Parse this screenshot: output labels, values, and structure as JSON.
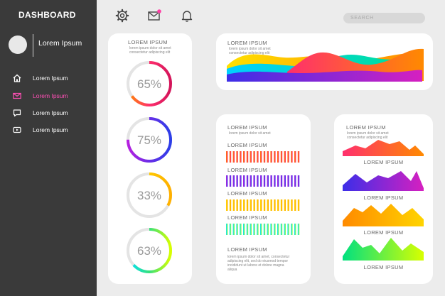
{
  "sidebar": {
    "title": "DASHBOARD",
    "user_name": "Lorem Ipsum",
    "items": [
      {
        "label": "Lorem Ipsum",
        "icon": "home-icon",
        "active": false
      },
      {
        "label": "Lorem Ipsum",
        "icon": "mail-icon",
        "active": true
      },
      {
        "label": "Lorem Ipsum",
        "icon": "chat-icon",
        "active": false
      },
      {
        "label": "Lorem Ipsum",
        "icon": "video-icon",
        "active": false
      }
    ]
  },
  "topbar": {
    "icons": [
      "gear-icon",
      "mail-icon",
      "bell-icon"
    ],
    "notification_color": "#ff3ea5",
    "search_placeholder": "SEARCH"
  },
  "donut_card": {
    "title": "LOREM IPSUM",
    "caption_lines": [
      "lorem ipsum dolor sit amet",
      "consectetur adipiscing elit"
    ],
    "donuts": [
      {
        "value": 65,
        "label": "65%",
        "colors": [
          "#ff8a00",
          "#ff2f6d",
          "#d4145a"
        ]
      },
      {
        "value": 75,
        "label": "75%",
        "colors": [
          "#b620e0",
          "#6a2ee8",
          "#2c3ee8"
        ]
      },
      {
        "value": 33,
        "label": "33%",
        "colors": [
          "#ffe000",
          "#ffb000"
        ]
      },
      {
        "value": 63,
        "label": "63%",
        "colors": [
          "#00e0ff",
          "#36e07a",
          "#d8ff00"
        ]
      }
    ]
  },
  "wave_card": {
    "title": "LOREM IPSUM",
    "caption_lines": [
      "lorem ipsum dolor sit amet",
      "consectetur adipiscing elit"
    ]
  },
  "bars_card": {
    "title": "LOREM IPSUM",
    "caption_lines": [
      "lorem ipsum dolor sit amet"
    ],
    "rows": [
      {
        "label": "LOREM IPSUM",
        "colors": [
          "#ff7a00",
          "#ff2f6d"
        ]
      },
      {
        "label": "LOREM IPSUM",
        "colors": [
          "#b620e0",
          "#3c3ce8"
        ]
      },
      {
        "label": "LOREM IPSUM",
        "colors": [
          "#ffe000",
          "#ffa000"
        ]
      },
      {
        "label": "LOREM IPSUM",
        "colors": [
          "#00e0ff",
          "#9dff3a"
        ]
      }
    ],
    "footer_title": "LOREM IPSUM",
    "footer_lines": [
      "lorem ipsum dolor sit amet, consectetur",
      "adipiscing elit, sed do eiusmod tempor",
      "incididunt ut labore et dolore magna",
      "aliqua"
    ]
  },
  "areas_card": {
    "title": "LOREM IPSUM",
    "caption_lines": [
      "lorem ipsum dolor sit amet",
      "consectetur adipiscing elit"
    ],
    "charts": [
      {
        "label": "LOREM IPSUM",
        "colors": [
          "#ff2f6d",
          "#ff8a00"
        ]
      },
      {
        "label": "LOREM IPSUM",
        "colors": [
          "#3c2ee8",
          "#d620c0"
        ]
      },
      {
        "label": "LOREM IPSUM",
        "colors": [
          "#ff8a00",
          "#ffd400"
        ]
      },
      {
        "label": "LOREM IPSUM",
        "colors": [
          "#00e080",
          "#d8ff00"
        ]
      }
    ]
  }
}
